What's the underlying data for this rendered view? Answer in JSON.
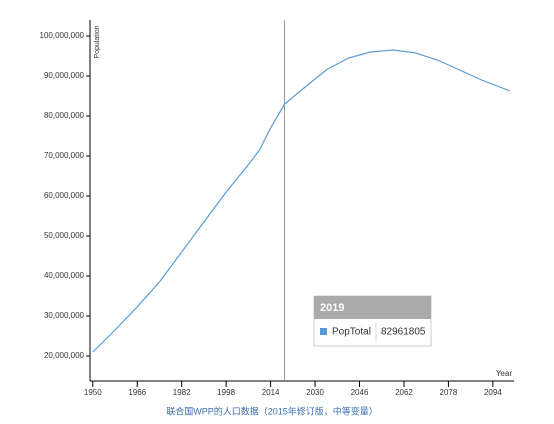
{
  "chart_data": {
    "type": "line",
    "caption": "联合国WPP的人口数据（2015年修订版，中等变量）",
    "y_label": "Population",
    "x_label": "Year",
    "x": [
      1950,
      1958,
      1966,
      1974,
      1982,
      1990,
      1998,
      2006,
      2010,
      2014,
      2019,
      2026,
      2034,
      2042,
      2050,
      2058,
      2066,
      2074,
      2082,
      2090,
      2100
    ],
    "series": [
      {
        "name": "PopTotal",
        "color": "#5b9bd5",
        "values": [
          21000000,
          26500000,
          32300000,
          38500000,
          46000000,
          53500000,
          61000000,
          67800000,
          71500000,
          77000000,
          82961805,
          87000000,
          91500000,
          94500000,
          96000000,
          96500000,
          95800000,
          94000000,
          91500000,
          89000000,
          86300000
        ]
      }
    ],
    "xlim": [
      1949,
      2101.6
    ],
    "ylim": [
      13750000,
      104000000
    ],
    "xticks": [
      1950,
      1966,
      1982,
      1998,
      2014,
      2030,
      2046,
      2062,
      2078,
      2094
    ],
    "yticks": [
      {
        "value": 20000000,
        "label": "20,000,000"
      },
      {
        "value": 30000000,
        "label": "30,000,000"
      },
      {
        "value": 40000000,
        "label": "40,000,000"
      },
      {
        "value": 50000000,
        "label": "50,000,000"
      },
      {
        "value": 60000000,
        "label": "60,000,000"
      },
      {
        "value": 70000000,
        "label": "70,000,000"
      },
      {
        "value": 80000000,
        "label": "80,000,000"
      },
      {
        "value": 90000000,
        "label": "90,000,000"
      },
      {
        "value": 100000000,
        "label": "100,000,000"
      }
    ],
    "tooltip_index": 10
  }
}
